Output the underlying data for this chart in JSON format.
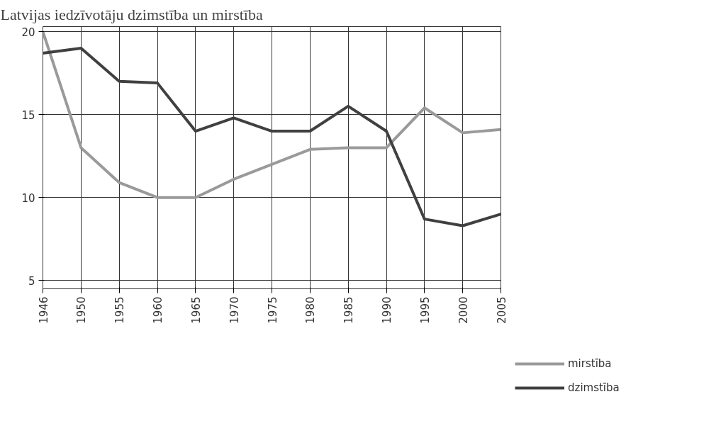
{
  "chart_data": {
    "type": "line",
    "title": "Latvijas iedzīvotāju dzimstība un mirstība",
    "categories": [
      "1946",
      "1950",
      "1955",
      "1960",
      "1965",
      "1970",
      "1975",
      "1980",
      "1985",
      "1990",
      "1995",
      "2000",
      "2005"
    ],
    "series": [
      {
        "name": "mirstība",
        "color": "#9a9a9a",
        "values": [
          20,
          13,
          10.9,
          10,
          10,
          11.1,
          12,
          12.9,
          13,
          13,
          15.4,
          13.9,
          14.1
        ]
      },
      {
        "name": "dzimstība",
        "color": "#404040",
        "values": [
          18.7,
          19,
          17,
          16.9,
          14,
          14.8,
          14,
          14,
          15.5,
          14,
          8.7,
          8.3,
          9
        ]
      }
    ],
    "ylim": [
      4.5,
      20.3
    ],
    "yticks": [
      5,
      10,
      15,
      20
    ],
    "grid": true,
    "legend": "right",
    "marker": "none",
    "line_style": "solid"
  }
}
